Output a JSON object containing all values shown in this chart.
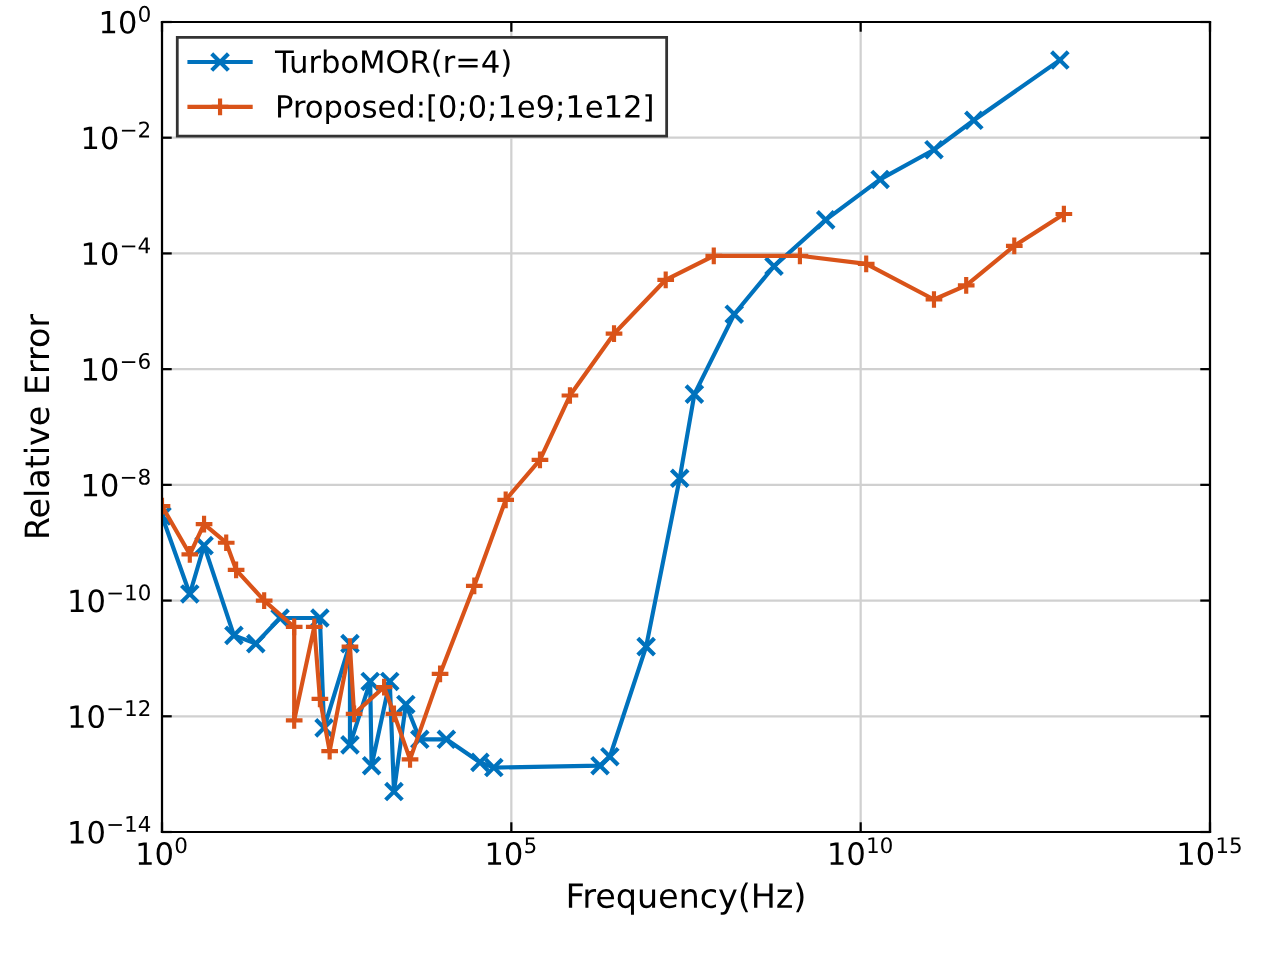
{
  "chart_data": {
    "type": "line",
    "xlabel": "Frequency(Hz)",
    "ylabel": "Relative Error",
    "log": "xy",
    "grid": true,
    "legend": "top left",
    "line_style": "solid",
    "xlim": [
      1,
      1000000000000000.0
    ],
    "ylim": [
      1e-14,
      1
    ],
    "xticks": [
      {
        "value": 1,
        "label": "10$^{0}$"
      },
      {
        "value": 100000.0,
        "label": "10$^{5}$"
      },
      {
        "value": 10000000000.0,
        "label": "10$^{10}$"
      },
      {
        "value": 1000000000000000.0,
        "label": "10$^{15}$"
      }
    ],
    "yticks": [
      {
        "value": 1e-14,
        "label": "10$^{−14}$"
      },
      {
        "value": 1e-12,
        "label": "10$^{−12}$"
      },
      {
        "value": 1e-10,
        "label": "10$^{−10}$"
      },
      {
        "value": 1e-08,
        "label": "10$^{−8}$"
      },
      {
        "value": 1e-06,
        "label": "10$^{−6}$"
      },
      {
        "value": 0.0001,
        "label": "10$^{−4}$"
      },
      {
        "value": 0.01,
        "label": "10$^{−2}$"
      },
      {
        "value": 1,
        "label": "10$^{0}$"
      }
    ],
    "series": [
      {
        "name": "TurboMOR(r=4)",
        "color": "#0072bd",
        "marker": "cross",
        "x": [
          1,
          2.5,
          4,
          10.7,
          22,
          49,
          182,
          209,
          490,
          490,
          955,
          1000,
          1820,
          2090,
          3090,
          4900,
          11750,
          35500,
          56200,
          1860000.0,
          2570000.0,
          8500000.0,
          25700000.0,
          41700000.0,
          155000000.0,
          575000000.0,
          3160000000.0,
          19000000000.0,
          112000000000.0,
          417000000000.0,
          7100000000000.0
        ],
        "values": [
          2.9e-09,
          1.3e-10,
          8.9e-10,
          2.5e-11,
          1.8e-11,
          5e-11,
          5e-11,
          6.3e-13,
          1.8e-11,
          3.2e-13,
          4e-12,
          1.4e-13,
          4e-12,
          5e-14,
          1.6e-12,
          4e-13,
          4e-13,
          1.6e-13,
          1.3e-13,
          1.4e-13,
          2e-13,
          1.6e-11,
          1.3e-08,
          3.7e-07,
          8.9e-06,
          6e-05,
          0.00038,
          0.0019,
          0.0062,
          0.02,
          0.22
        ]
      },
      {
        "name": "Proposed:[0;0;1e9;1e12]",
        "color": "#d95319",
        "marker": "plus",
        "x": [
          1,
          2.5,
          4,
          8.3,
          11.5,
          29,
          78,
          78,
          151,
          182,
          251,
          490,
          562,
          1510,
          2090,
          3550,
          9550,
          29500,
          83000,
          257000.0,
          690000.0,
          2950000.0,
          16200000.0,
          79000000.0,
          1350000000.0,
          12000000000.0,
          112000000000.0,
          324000000000.0,
          1580000000000.0,
          8100000000000.0
        ],
        "values": [
          4.3e-09,
          6.3e-10,
          2.1e-09,
          1e-09,
          3.4e-10,
          1e-10,
          3.5e-11,
          8.5e-13,
          3.5e-11,
          2e-12,
          2.5e-13,
          1.6e-11,
          1.1e-12,
          3.2e-12,
          1.1e-12,
          1.8e-13,
          5.4e-12,
          1.8e-10,
          5.5e-09,
          2.7e-08,
          3.5e-07,
          4.1e-06,
          3.5e-05,
          9.1e-05,
          9.1e-05,
          6.6e-05,
          1.6e-05,
          2.8e-05,
          0.000135,
          0.00048
        ]
      }
    ]
  }
}
